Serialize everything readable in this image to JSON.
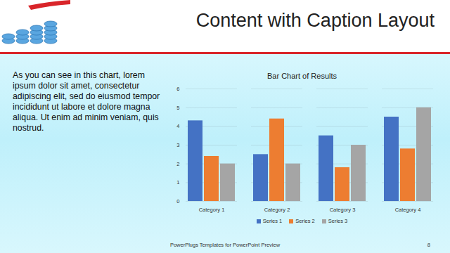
{
  "slide": {
    "title": "Content with Caption Layout",
    "caption": "As you can see in this chart, lorem ipsum dolor sit amet, consectetur adipiscing elit, sed do eiusmod tempor incididunt ut labore et dolore magna aliqua. Ut enim ad minim veniam, quis nostrud.",
    "footer": "PowerPlugs Templates for PowerPoint Preview",
    "page": 8
  },
  "chart_data": {
    "type": "bar",
    "title": "Bar Chart of Results",
    "categories": [
      "Category 1",
      "Category 2",
      "Category 3",
      "Category 4"
    ],
    "series": [
      {
        "name": "Series 1",
        "color": "#4472c4",
        "values": [
          4.3,
          2.5,
          3.5,
          4.5
        ]
      },
      {
        "name": "Series 2",
        "color": "#ed7d31",
        "values": [
          2.4,
          4.4,
          1.8,
          2.8
        ]
      },
      {
        "name": "Series 3",
        "color": "#a5a5a5",
        "values": [
          2,
          2,
          3,
          5
        ]
      }
    ],
    "ylim": [
      0,
      6
    ],
    "yticks": [
      0,
      1,
      2,
      3,
      4,
      5,
      6
    ],
    "grid": true,
    "legend": "bottom"
  }
}
